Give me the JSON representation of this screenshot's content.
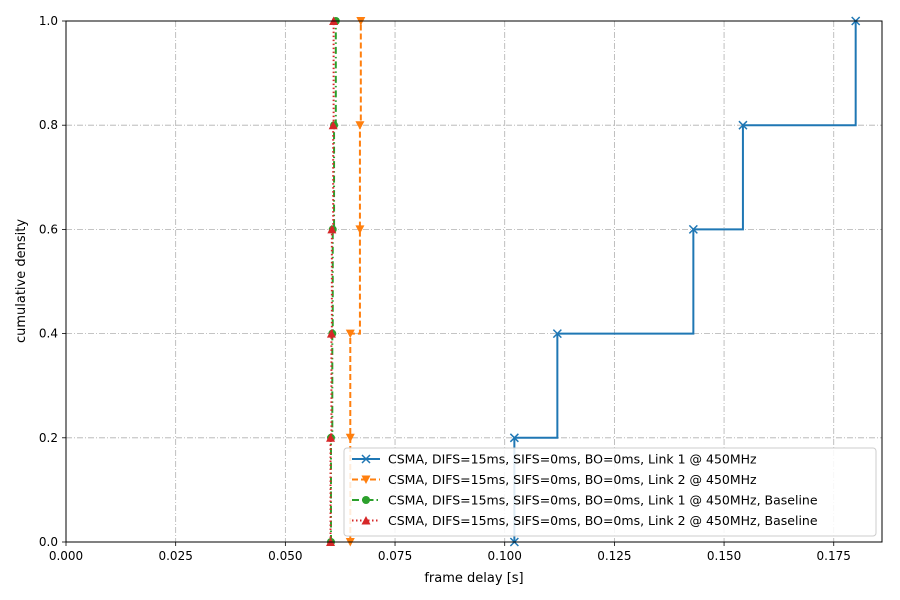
{
  "chart_data": {
    "type": "line",
    "title": "",
    "xlabel": "frame delay [s]",
    "ylabel": "cumulative density",
    "xlim": [
      0.0,
      0.186
    ],
    "ylim": [
      0.0,
      1.0
    ],
    "xticks": [
      0.0,
      0.025,
      0.05,
      0.075,
      0.1,
      0.125,
      0.15,
      0.175
    ],
    "xtick_labels": [
      "0.000",
      "0.025",
      "0.050",
      "0.075",
      "0.100",
      "0.125",
      "0.150",
      "0.175"
    ],
    "yticks": [
      0.0,
      0.2,
      0.4,
      0.6,
      0.8,
      1.0
    ],
    "ytick_labels": [
      "0.0",
      "0.2",
      "0.4",
      "0.6",
      "0.8",
      "1.0"
    ],
    "grid": true,
    "legend_position": "lower-right",
    "series": [
      {
        "name": "CSMA, DIFS=15ms, SIFS=0ms, BO=0ms, Link 1 @ 450MHz",
        "color": "#1f77b4",
        "marker": "x",
        "linestyle": "solid",
        "x": [
          0.1022,
          0.1022,
          0.112,
          0.143,
          0.1543,
          0.18
        ],
        "y": [
          0.0,
          0.2,
          0.4,
          0.6,
          0.8,
          1.0
        ]
      },
      {
        "name": "CSMA, DIFS=15ms, SIFS=0ms, BO=0ms, Link 2 @ 450MHz",
        "color": "#ff7f0e",
        "marker": "v",
        "linestyle": "dashed",
        "x": [
          0.0648,
          0.0648,
          0.0648,
          0.067,
          0.067,
          0.0672
        ],
        "y": [
          0.0,
          0.2,
          0.4,
          0.6,
          0.8,
          1.0
        ]
      },
      {
        "name": "CSMA, DIFS=15ms, SIFS=0ms, BO=0ms, Link 1 @ 450MHz,  Baseline",
        "color": "#2ca02c",
        "marker": "o",
        "linestyle": "dashdot",
        "x": [
          0.0604,
          0.0604,
          0.0607,
          0.0608,
          0.0611,
          0.0615
        ],
        "y": [
          0.0,
          0.2,
          0.4,
          0.6,
          0.8,
          1.0
        ]
      },
      {
        "name": "CSMA, DIFS=15ms, SIFS=0ms, BO=0ms, Link 2 @ 450MHz,  Baseline",
        "color": "#d62728",
        "marker": "^",
        "linestyle": "dotted",
        "x": [
          0.0603,
          0.0603,
          0.0605,
          0.0606,
          0.0609,
          0.061
        ],
        "y": [
          0.0,
          0.2,
          0.4,
          0.6,
          0.8,
          1.0
        ]
      }
    ]
  }
}
